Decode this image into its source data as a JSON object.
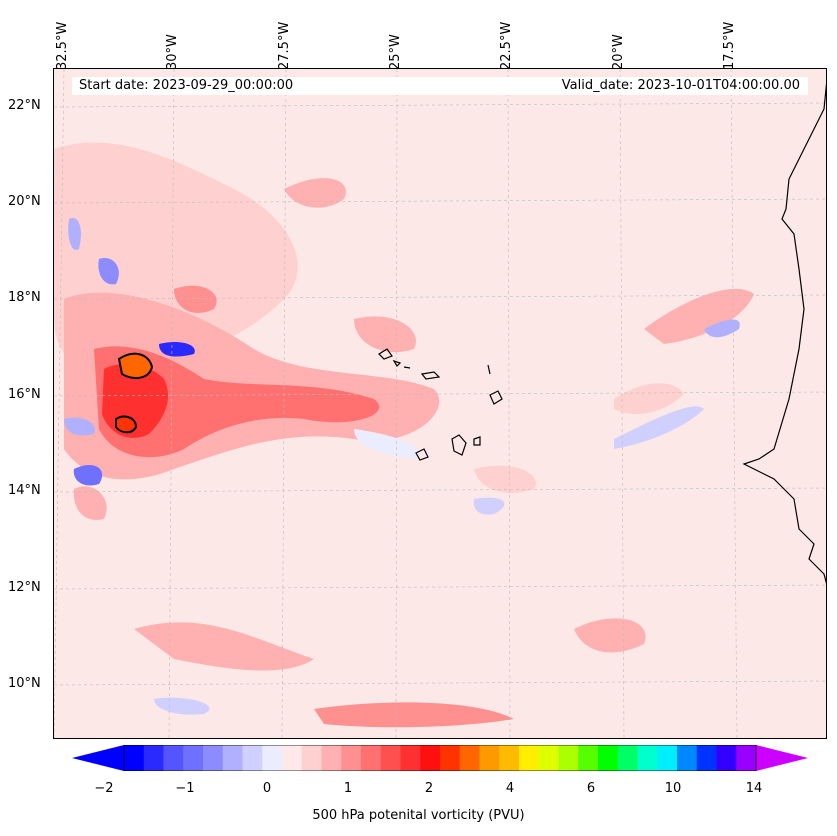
{
  "map": {
    "start_date": "Start date: 2023-09-29_00:00:00",
    "valid_date": "Valid_date: 2023-10-01T04:00:00.00",
    "lon_labels": [
      "32.5°W",
      "30°W",
      "27.5°W",
      "25°W",
      "22.5°W",
      "20°W",
      "17.5°W"
    ],
    "lat_labels": [
      "22°N",
      "20°N",
      "18°N",
      "16°N",
      "14°N",
      "12°N",
      "10°N"
    ],
    "gridlines": true,
    "background_level_color": "#fde8e8"
  },
  "colorbar": {
    "label": "500 hPa potenital vorticity (PVU)",
    "tick_labels": [
      "−2",
      "−1",
      "0",
      "1",
      "2",
      "4",
      "6",
      "10",
      "14"
    ],
    "extend": "both",
    "colors": [
      "#0000ff",
      "#2a2aff",
      "#5555ff",
      "#7070ff",
      "#8c8cff",
      "#b0b0ff",
      "#d0d0ff",
      "#ececff",
      "#ffe8e8",
      "#ffd0d0",
      "#ffb0b0",
      "#ff9090",
      "#ff7070",
      "#ff5050",
      "#ff3030",
      "#ff1010",
      "#ff3300",
      "#ff6600",
      "#ff9900",
      "#ffbb00",
      "#ffee00",
      "#ddff00",
      "#aaff00",
      "#55ff00",
      "#00ff00",
      "#00ff66",
      "#00ffcc",
      "#00eeff",
      "#0088ff",
      "#0033ff",
      "#3300ff",
      "#9900ff"
    ],
    "under_color": "#0000ff",
    "over_color": "#cc00ff"
  }
}
